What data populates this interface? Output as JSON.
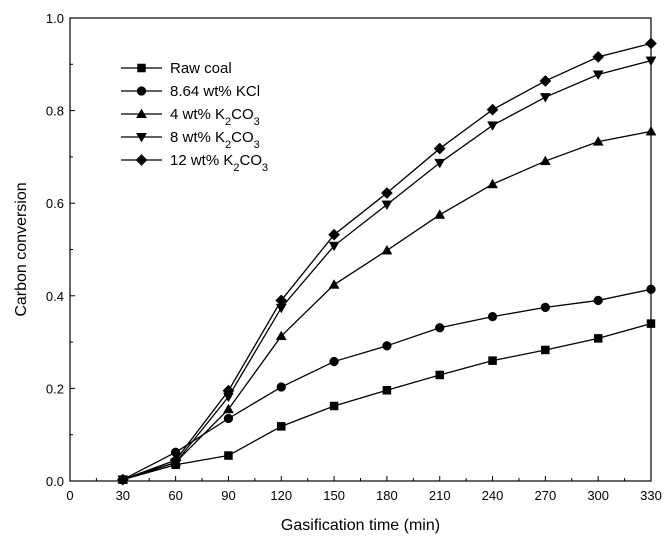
{
  "chart_data": {
    "type": "line",
    "title": "",
    "xlabel": "Gasification time (min)",
    "ylabel": "Carbon conversion",
    "xlim": [
      0,
      330
    ],
    "ylim": [
      0,
      1.0
    ],
    "x_ticks": [
      "0",
      "30",
      "60",
      "90",
      "120",
      "150",
      "180",
      "210",
      "240",
      "270",
      "300",
      "330"
    ],
    "y_ticks": [
      "0.0",
      "0.2",
      "0.4",
      "0.6",
      "0.8",
      "1.0"
    ],
    "grid": false,
    "legend_position": "top-left",
    "x": [
      30,
      60,
      90,
      120,
      150,
      180,
      210,
      240,
      270,
      300,
      330
    ],
    "series": [
      {
        "name": "Raw coal",
        "marker": "square",
        "values": [
          0.003,
          0.035,
          0.055,
          0.118,
          0.162,
          0.196,
          0.229,
          0.26,
          0.283,
          0.308,
          0.34
        ]
      },
      {
        "name": "8.64 wt% KCl",
        "marker": "circle",
        "values": [
          0.003,
          0.062,
          0.135,
          0.203,
          0.258,
          0.292,
          0.331,
          0.355,
          0.375,
          0.39,
          0.414
        ]
      },
      {
        "name": "4 wt% K2CO3",
        "name_parts": [
          "4 wt% K",
          "2",
          "CO",
          "3"
        ],
        "marker": "triangle-up",
        "values": [
          0.003,
          0.04,
          0.155,
          0.313,
          0.424,
          0.498,
          0.575,
          0.641,
          0.691,
          0.733,
          0.755
        ]
      },
      {
        "name": "8 wt% K2CO3",
        "name_parts": [
          "8 wt% K",
          "2",
          "CO",
          "3"
        ],
        "marker": "triangle-down",
        "values": [
          0.003,
          0.04,
          0.182,
          0.374,
          0.508,
          0.597,
          0.687,
          0.768,
          0.829,
          0.878,
          0.908
        ]
      },
      {
        "name": "12 wt% K2CO3",
        "name_parts": [
          "12 wt% K",
          "2",
          "CO",
          "3"
        ],
        "marker": "diamond",
        "values": [
          0.003,
          0.045,
          0.195,
          0.39,
          0.532,
          0.622,
          0.718,
          0.802,
          0.864,
          0.916,
          0.945
        ]
      }
    ]
  }
}
